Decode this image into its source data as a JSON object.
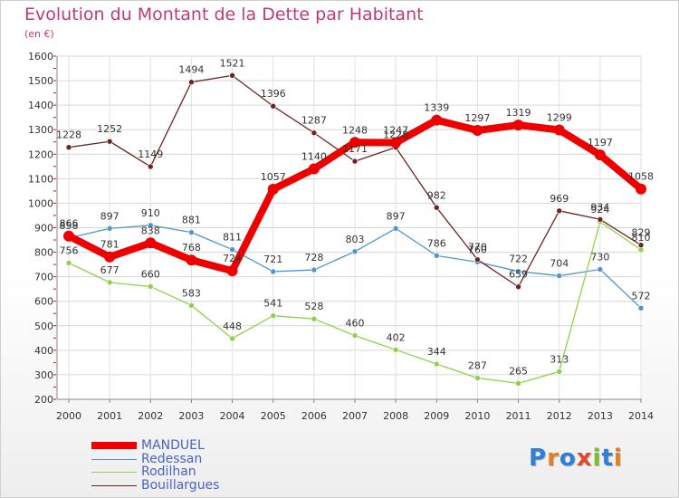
{
  "header": {
    "title": "Evolution du Montant de la Dette par Habitant",
    "unit": "(en €)"
  },
  "logo": {
    "text": "Proxiti",
    "letter_colors": [
      "#2f7fd6",
      "#e2811f",
      "#2f7fd6",
      "#e04a2a",
      "#7bbf2e",
      "#2f7fd6",
      "#e2811f"
    ]
  },
  "chart_data": {
    "type": "line",
    "title": "Evolution du Montant de la Dette par Habitant",
    "ylabel": "(en €)",
    "xlabel": "",
    "x": [
      "2000",
      "2001",
      "2002",
      "2003",
      "2004",
      "2005",
      "2006",
      "2007",
      "2008",
      "2009",
      "2010",
      "2011",
      "2012",
      "2013",
      "2014"
    ],
    "ylim": [
      200,
      1600
    ],
    "yticks": [
      200,
      300,
      400,
      500,
      600,
      700,
      800,
      900,
      1000,
      1100,
      1200,
      1300,
      1400,
      1500,
      1600
    ],
    "grid": true,
    "legend_position": "bottom-left",
    "series": [
      {
        "name": "MANDUEL",
        "color": "#ee0000",
        "values": [
          866,
          781,
          838,
          768,
          724,
          1057,
          1140,
          1248,
          1247,
          1339,
          1297,
          1319,
          1299,
          1197,
          1058
        ]
      },
      {
        "name": "Redessan",
        "color": "#4f95d0",
        "values": [
          858,
          897,
          910,
          881,
          811,
          721,
          728,
          803,
          897,
          786,
          760,
          722,
          704,
          730,
          572
        ]
      },
      {
        "name": "Rodilhan",
        "color": "#8fd14a",
        "values": [
          756,
          677,
          660,
          583,
          448,
          541,
          528,
          460,
          402,
          344,
          287,
          265,
          313,
          924,
          810
        ]
      },
      {
        "name": "Bouillargues",
        "color": "#6e2323",
        "values": [
          1228,
          1252,
          1149,
          1494,
          1521,
          1396,
          1287,
          1171,
          1228,
          982,
          770,
          659,
          969,
          934,
          829
        ]
      }
    ]
  }
}
